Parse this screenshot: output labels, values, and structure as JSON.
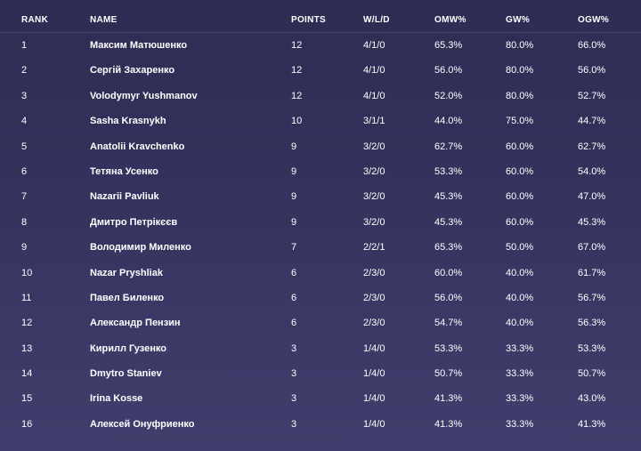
{
  "headers": {
    "rank": "RANK",
    "name": "NAME",
    "points": "POINTS",
    "wld": "W/L/D",
    "omw": "OMW%",
    "gw": "GW%",
    "ogw": "OGW%"
  },
  "rows": [
    {
      "rank": "1",
      "name": "Максим Матюшенко",
      "points": "12",
      "wld": "4/1/0",
      "omw": "65.3%",
      "gw": "80.0%",
      "ogw": "66.0%"
    },
    {
      "rank": "2",
      "name": "Сергій Захаренко",
      "points": "12",
      "wld": "4/1/0",
      "omw": "56.0%",
      "gw": "80.0%",
      "ogw": "56.0%"
    },
    {
      "rank": "3",
      "name": "Volodymyr Yushmanov",
      "points": "12",
      "wld": "4/1/0",
      "omw": "52.0%",
      "gw": "80.0%",
      "ogw": "52.7%"
    },
    {
      "rank": "4",
      "name": "Sasha Krasnykh",
      "points": "10",
      "wld": "3/1/1",
      "omw": "44.0%",
      "gw": "75.0%",
      "ogw": "44.7%"
    },
    {
      "rank": "5",
      "name": "Anatolii Kravchenko",
      "points": "9",
      "wld": "3/2/0",
      "omw": "62.7%",
      "gw": "60.0%",
      "ogw": "62.7%"
    },
    {
      "rank": "6",
      "name": "Тетяна Усенко",
      "points": "9",
      "wld": "3/2/0",
      "omw": "53.3%",
      "gw": "60.0%",
      "ogw": "54.0%"
    },
    {
      "rank": "7",
      "name": "Nazarii Pavliuk",
      "points": "9",
      "wld": "3/2/0",
      "omw": "45.3%",
      "gw": "60.0%",
      "ogw": "47.0%"
    },
    {
      "rank": "8",
      "name": "Дмитро Петрікєєв",
      "points": "9",
      "wld": "3/2/0",
      "omw": "45.3%",
      "gw": "60.0%",
      "ogw": "45.3%"
    },
    {
      "rank": "9",
      "name": "Володимир Миленко",
      "points": "7",
      "wld": "2/2/1",
      "omw": "65.3%",
      "gw": "50.0%",
      "ogw": "67.0%"
    },
    {
      "rank": "10",
      "name": "Nazar Pryshliak",
      "points": "6",
      "wld": "2/3/0",
      "omw": "60.0%",
      "gw": "40.0%",
      "ogw": "61.7%"
    },
    {
      "rank": "11",
      "name": "Павел Биленко",
      "points": "6",
      "wld": "2/3/0",
      "omw": "56.0%",
      "gw": "40.0%",
      "ogw": "56.7%"
    },
    {
      "rank": "12",
      "name": "Александр Пензин",
      "points": "6",
      "wld": "2/3/0",
      "omw": "54.7%",
      "gw": "40.0%",
      "ogw": "56.3%"
    },
    {
      "rank": "13",
      "name": "Кирилл Гузенко",
      "points": "3",
      "wld": "1/4/0",
      "omw": "53.3%",
      "gw": "33.3%",
      "ogw": "53.3%"
    },
    {
      "rank": "14",
      "name": "Dmytro Staniev",
      "points": "3",
      "wld": "1/4/0",
      "omw": "50.7%",
      "gw": "33.3%",
      "ogw": "50.7%"
    },
    {
      "rank": "15",
      "name": "Irina Kosse",
      "points": "3",
      "wld": "1/4/0",
      "omw": "41.3%",
      "gw": "33.3%",
      "ogw": "43.0%"
    },
    {
      "rank": "16",
      "name": "Алексей Онуфриенко",
      "points": "3",
      "wld": "1/4/0",
      "omw": "41.3%",
      "gw": "33.3%",
      "ogw": "41.3%"
    }
  ]
}
